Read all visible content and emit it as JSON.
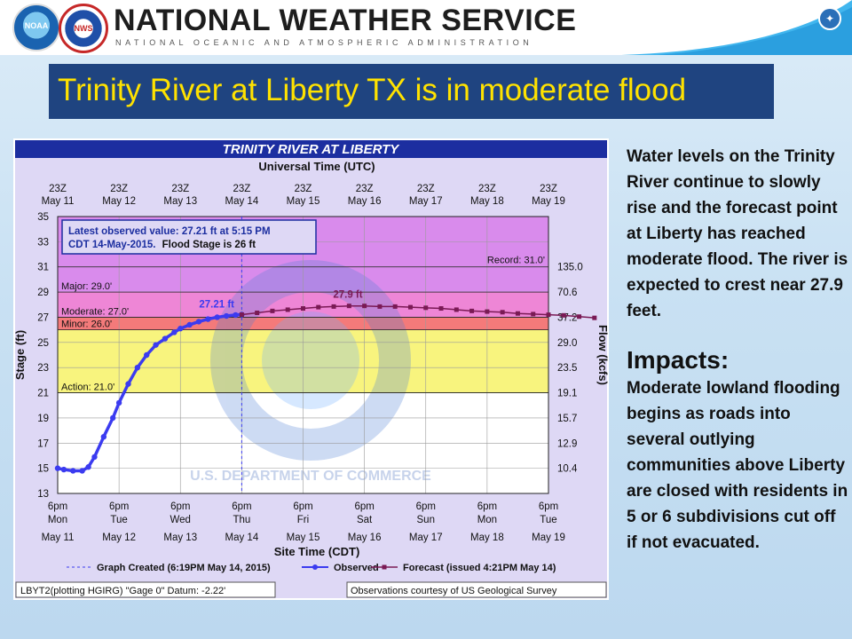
{
  "header": {
    "title": "NATIONAL WEATHER SERVICE",
    "subtitle": "NATIONAL OCEANIC AND ATMOSPHERIC ADMINISTRATION",
    "noaa_logo_text": "NOAA",
    "nws_logo_text": "NATIONAL WEATHER SERVICE"
  },
  "banner": {
    "text": "Trinity River at Liberty TX is in moderate flood"
  },
  "side_text": {
    "intro": "Water levels on the Trinity River continue to slowly rise and the forecast point at Liberty has reached moderate flood. The river is expected to crest near 27.9 feet.",
    "impacts_heading": "Impacts:",
    "impacts_body": "Moderate lowland flooding begins as roads into several outlying communities above Liberty are closed with residents in 5 or 6 subdivisions cut off if not evacuated."
  },
  "colors": {
    "banner_bg": "#1f4480",
    "banner_text": "#ffe200",
    "record_zone": "#d98bec",
    "major_zone": "#ee86d6",
    "moderate_zone": "#f47a7a",
    "minor_zone": "#f8f47e",
    "below_action": "#ffffff",
    "observed": "#3b3bf0",
    "forecast": "#7a1a55"
  },
  "chart_data": {
    "type": "line",
    "title": "TRINITY RIVER AT LIBERTY",
    "top_axis_title": "Universal Time (UTC)",
    "bottom_axis_title": "Site Time (CDT)",
    "ylabel": "Stage (ft)",
    "y2label": "Flow (kcfs)",
    "ylim": [
      13,
      35
    ],
    "y_ticks": [
      13,
      15,
      17,
      19,
      21,
      23,
      25,
      27,
      29,
      31,
      33,
      35
    ],
    "x_days": [
      "May 11",
      "May 12",
      "May 13",
      "May 14",
      "May 15",
      "May 16",
      "May 17",
      "May 18",
      "May 19"
    ],
    "utc_labels": [
      "23Z",
      "23Z",
      "23Z",
      "23Z",
      "23Z",
      "23Z",
      "23Z",
      "23Z",
      "23Z"
    ],
    "site_time_labels": [
      "6pm",
      "6pm",
      "6pm",
      "6pm",
      "6pm",
      "6pm",
      "6pm",
      "6pm",
      "6pm"
    ],
    "site_weekdays": [
      "Mon",
      "Tue",
      "Wed",
      "Thu",
      "Fri",
      "Sat",
      "Sun",
      "Mon",
      "Tue"
    ],
    "flow_ticks": [
      {
        "stage": 31,
        "label": "135.0"
      },
      {
        "stage": 29,
        "label": "70.6"
      },
      {
        "stage": 27,
        "label": "37.2"
      },
      {
        "stage": 25,
        "label": "29.0"
      },
      {
        "stage": 23,
        "label": "23.5"
      },
      {
        "stage": 21,
        "label": "19.1"
      },
      {
        "stage": 19,
        "label": "15.7"
      },
      {
        "stage": 17,
        "label": "12.9"
      },
      {
        "stage": 15,
        "label": "10.4"
      }
    ],
    "flood_categories": [
      {
        "name": "Record",
        "stage": 31.0,
        "label": "Record: 31.0'"
      },
      {
        "name": "Major",
        "stage": 29.0,
        "label": "Major: 29.0'"
      },
      {
        "name": "Moderate",
        "stage": 27.0,
        "label": "Moderate: 27.0'"
      },
      {
        "name": "Minor",
        "stage": 26.0,
        "label": "Minor: 26.0'"
      },
      {
        "name": "Action",
        "stage": 21.0,
        "label": "Action: 21.0'"
      }
    ],
    "info_box": {
      "line1": "Latest observed value: 27.21 ft at 5:15 PM",
      "line2a": "CDT 14-May-2015.",
      "line2b": "Flood Stage is 26 ft"
    },
    "observed_label": "27.21 ft",
    "crest_label": "27.9 ft",
    "series": [
      {
        "name": "Observed",
        "x_days": [
          0,
          0.1,
          0.25,
          0.4,
          0.5,
          0.6,
          0.75,
          0.9,
          1.0,
          1.15,
          1.3,
          1.45,
          1.6,
          1.75,
          1.9,
          2.0,
          2.15,
          2.3,
          2.45,
          2.6,
          2.75,
          2.9,
          3.0
        ],
        "values": [
          15.0,
          14.9,
          14.8,
          14.8,
          15.1,
          15.9,
          17.5,
          19.0,
          20.2,
          21.7,
          23.0,
          24.0,
          24.8,
          25.3,
          25.8,
          26.1,
          26.4,
          26.65,
          26.85,
          27.0,
          27.1,
          27.18,
          27.21
        ]
      },
      {
        "name": "Forecast (issued 4:21PM May 14)",
        "x_days": [
          3.0,
          3.25,
          3.5,
          3.75,
          4.0,
          4.25,
          4.5,
          4.75,
          5.0,
          5.25,
          5.5,
          5.75,
          6.0,
          6.25,
          6.5,
          6.75,
          7.0,
          7.25,
          7.5,
          7.75,
          8.0,
          8.25,
          8.5,
          8.75
        ],
        "values": [
          27.21,
          27.35,
          27.5,
          27.6,
          27.7,
          27.8,
          27.85,
          27.9,
          27.9,
          27.85,
          27.85,
          27.8,
          27.75,
          27.7,
          27.6,
          27.5,
          27.45,
          27.4,
          27.3,
          27.25,
          27.2,
          27.15,
          27.05,
          26.95
        ]
      }
    ],
    "legend": {
      "created": "Graph Created (6:19PM May 14, 2015)",
      "observed": "Observed",
      "forecast": "Forecast (issued 4:21PM May 14)"
    },
    "footer_left": "LBYT2(plotting HGIRG) \"Gage 0\" Datum: -2.22'",
    "footer_right": "Observations courtesy of US Geological Survey",
    "watermark_text": "U.S. DEPARTMENT OF COMMERCE",
    "watermark_top": "NATIONAL OCEANIC AND ATMOSPHERIC ADMINISTRATION"
  }
}
